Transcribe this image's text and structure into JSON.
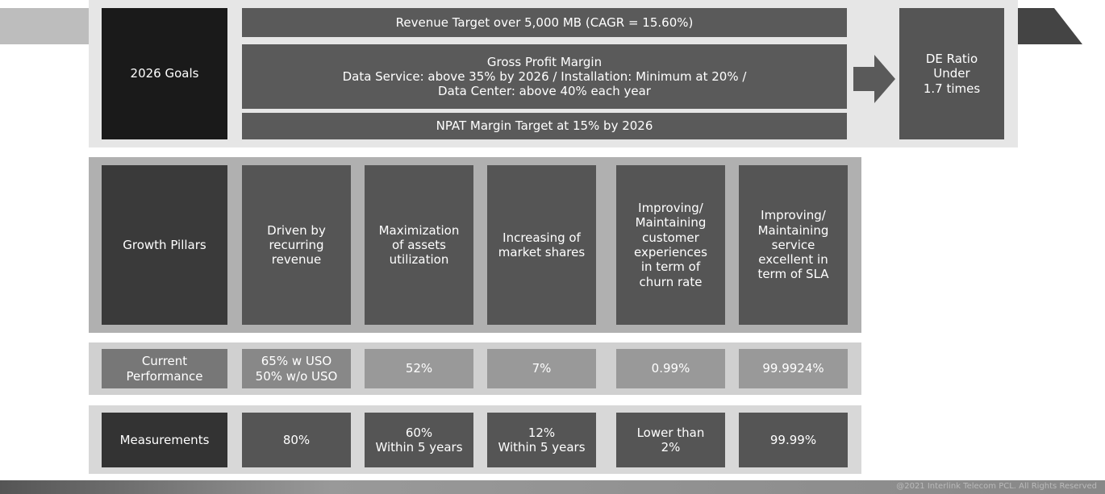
{
  "goals": {
    "label": "2026 Goals",
    "revenue": "Revenue Target over 5,000 MB (CAGR = 15.60%)",
    "gross_profit": "Gross Profit Margin\nData Service: above 35% by 2026 / Installation: Minimum at 20% /\nData Center: above 40% each year",
    "npat": "NPAT Margin Target at 15% by 2026",
    "de_ratio": "DE Ratio\nUnder\n1.7 times"
  },
  "pillars": {
    "label": "Growth Pillars",
    "items": [
      "Driven by\nrecurring\nrevenue",
      "Maximization\nof assets\nutilization",
      "Increasing of\nmarket shares",
      "Improving/\nMaintaining\ncustomer\nexperiences\nin term of\nchurn rate",
      "Improving/\nMaintaining\nservice\nexcellent in\nterm of SLA"
    ]
  },
  "performance": {
    "label": "Current\nPerformance",
    "items": [
      "65% w USO\n50% w/o USO",
      "52%",
      "7%",
      "0.99%",
      "99.9924%"
    ]
  },
  "measurements": {
    "label": "Measurements",
    "items": [
      "80%",
      "60%\nWithin 5 years",
      "12%\nWithin 5 years",
      "Lower than\n2%",
      "99.99%"
    ]
  },
  "footer": "@2021 Interlink Telecom PCL. All Rights Reserved"
}
